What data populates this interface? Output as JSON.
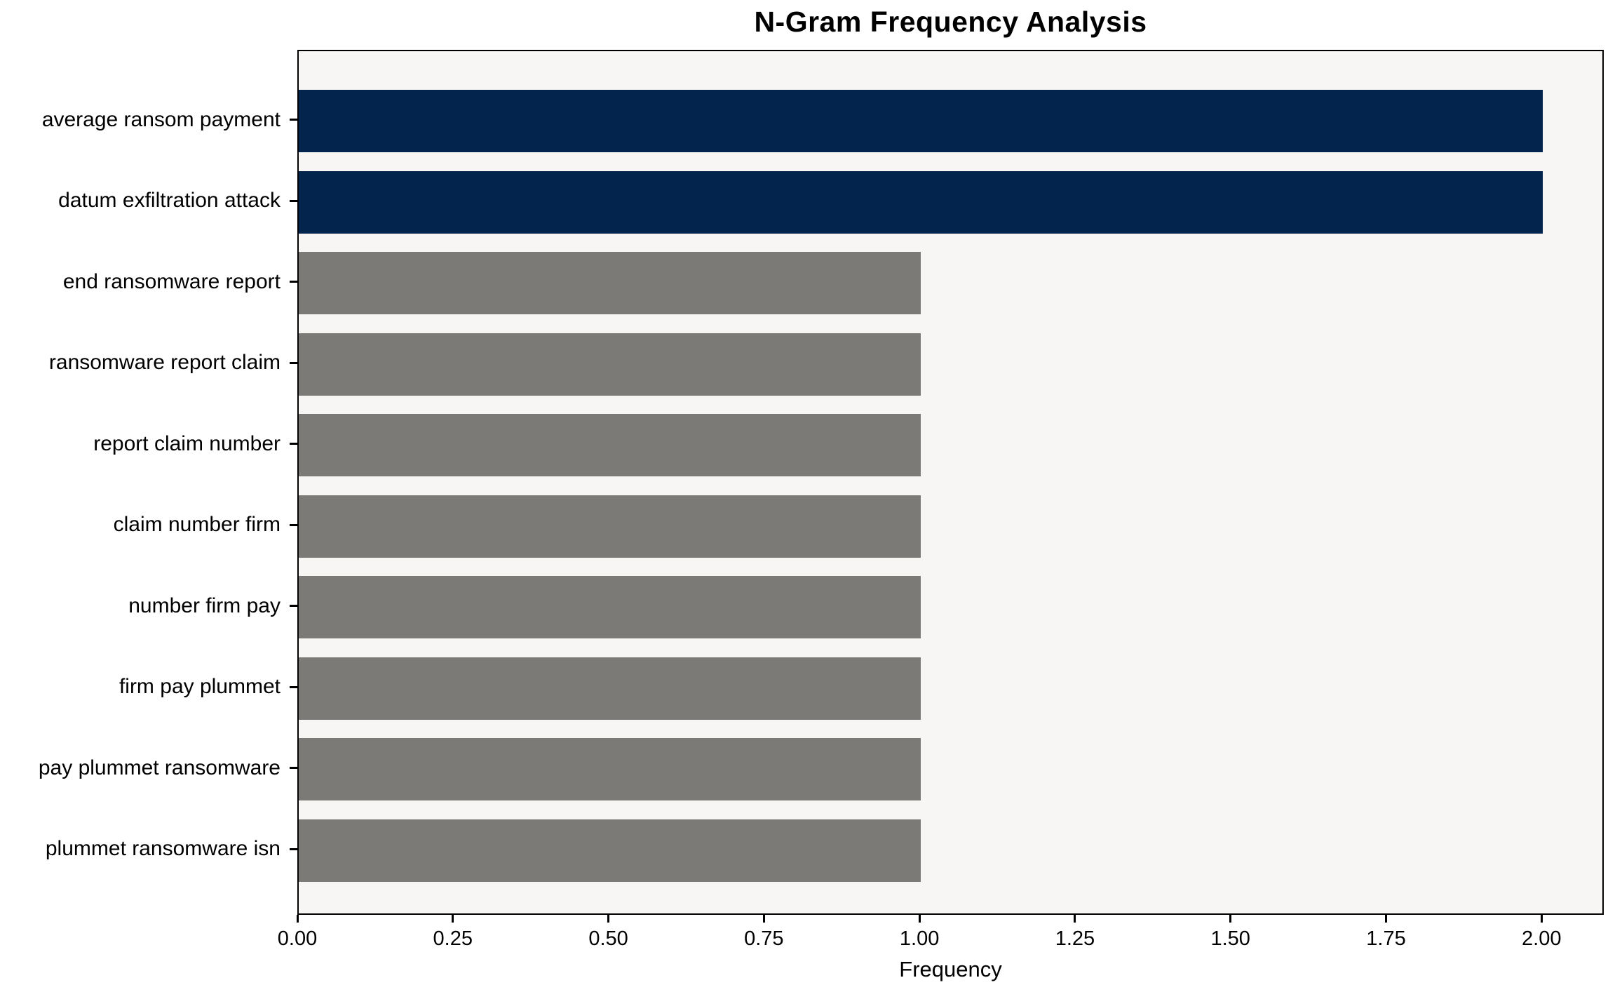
{
  "chart_data": {
    "type": "bar",
    "orientation": "horizontal",
    "title": "N-Gram Frequency Analysis",
    "xlabel": "Frequency",
    "ylabel": "",
    "categories": [
      "average ransom payment",
      "datum exfiltration attack",
      "end ransomware report",
      "ransomware report claim",
      "report claim number",
      "claim number firm",
      "number firm pay",
      "firm pay plummet",
      "pay plummet ransomware",
      "plummet ransomware isn"
    ],
    "values": [
      2,
      2,
      1,
      1,
      1,
      1,
      1,
      1,
      1,
      1
    ],
    "bar_colors": [
      "#03254d",
      "#03254d",
      "#7b7a76",
      "#7b7a76",
      "#7b7a76",
      "#7b7a76",
      "#7b7a76",
      "#7b7a76",
      "#7b7a76",
      "#7b7a76"
    ],
    "highlight_color": "#03254d",
    "default_color": "#7b7a76",
    "xticks": [
      0,
      0.25,
      0.5,
      0.75,
      1.0,
      1.25,
      1.5,
      1.75,
      2.0
    ],
    "xtick_labels": [
      "0.00",
      "0.25",
      "0.50",
      "0.75",
      "1.00",
      "1.25",
      "1.50",
      "1.75",
      "2.00"
    ],
    "xlim": [
      0,
      2.1
    ],
    "grid": false,
    "legend": null,
    "plot_background": "#f7f6f5",
    "spine_color": "#000000"
  }
}
